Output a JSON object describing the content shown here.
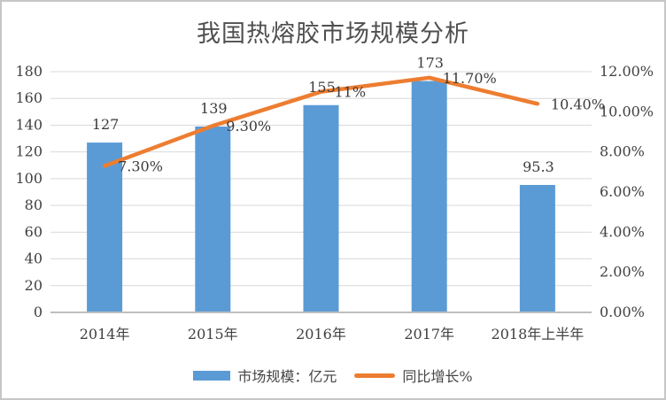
{
  "chart": {
    "title": "我国热熔胶市场规模分析"
  },
  "chart_data": {
    "type": "bar",
    "combo": [
      "bar",
      "line"
    ],
    "title": "我国热熔胶市场规模分析",
    "categories": [
      "2014年",
      "2015年",
      "2016年",
      "2017年",
      "2018年上半年"
    ],
    "series": [
      {
        "name": "市场规模：亿元",
        "type": "bar",
        "axis": "left",
        "color": "#5B9BD5",
        "values": [
          127,
          139,
          155,
          173,
          95.3
        ],
        "data_labels": [
          "127",
          "139",
          "155",
          "173",
          "95.3"
        ]
      },
      {
        "name": "同比增长%",
        "type": "line",
        "axis": "right",
        "color": "#ED7D31",
        "values": [
          7.3,
          9.3,
          11,
          11.7,
          10.4
        ],
        "data_labels": [
          "7.30%",
          "9.30%",
          "11%",
          "11.70%",
          "10.40%"
        ]
      }
    ],
    "left_axis": {
      "min": 0,
      "max": 180,
      "step": 20,
      "ticks": [
        "0",
        "20",
        "40",
        "60",
        "80",
        "100",
        "120",
        "140",
        "160",
        "180"
      ]
    },
    "right_axis": {
      "min": 0,
      "max": 12,
      "step": 2,
      "ticks": [
        "0.00%",
        "2.00%",
        "4.00%",
        "6.00%",
        "8.00%",
        "10.00%",
        "12.00%"
      ]
    },
    "grid": true,
    "legend_position": "bottom"
  },
  "colors": {
    "bar": "#5B9BD5",
    "line": "#ED7D31",
    "gridline": "#D9D9D9",
    "axis_line": "#BFBFBF",
    "text": "#404040",
    "border": "#C6C6C6",
    "background": "#FFFFFF"
  }
}
